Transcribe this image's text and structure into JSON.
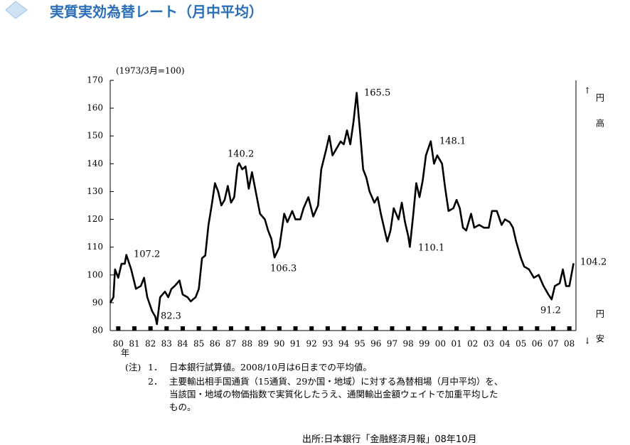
{
  "chart_data": {
    "type": "line",
    "title": "実質実効為替レート（月中平均）",
    "y_label": "(1973/3月=100)",
    "x_label": "年",
    "right_labels": [
      "↑",
      "円",
      "高",
      "円",
      "安",
      "↓"
    ],
    "xlim": [
      1980,
      2009
    ],
    "xticks": [
      {
        "value": 1980,
        "label": "80"
      },
      {
        "value": 1981,
        "label": "81"
      },
      {
        "value": 1982,
        "label": "82"
      },
      {
        "value": 1983,
        "label": "83"
      },
      {
        "value": 1984,
        "label": "84"
      },
      {
        "value": 1985,
        "label": "85"
      },
      {
        "value": 1986,
        "label": "86"
      },
      {
        "value": 1987,
        "label": "87"
      },
      {
        "value": 1988,
        "label": "88"
      },
      {
        "value": 1989,
        "label": "89"
      },
      {
        "value": 1990,
        "label": "90"
      },
      {
        "value": 1991,
        "label": "91"
      },
      {
        "value": 1992,
        "label": "92"
      },
      {
        "value": 1993,
        "label": "93"
      },
      {
        "value": 1994,
        "label": "94"
      },
      {
        "value": 1995,
        "label": "95"
      },
      {
        "value": 1996,
        "label": "96"
      },
      {
        "value": 1997,
        "label": "97"
      },
      {
        "value": 1998,
        "label": "98"
      },
      {
        "value": 1999,
        "label": "99"
      },
      {
        "value": 2000,
        "label": "00"
      },
      {
        "value": 2001,
        "label": "01"
      },
      {
        "value": 2002,
        "label": "02"
      },
      {
        "value": 2003,
        "label": "03"
      },
      {
        "value": 2004,
        "label": "04"
      },
      {
        "value": 2005,
        "label": "05"
      },
      {
        "value": 2006,
        "label": "06"
      },
      {
        "value": 2007,
        "label": "07"
      },
      {
        "value": 2008,
        "label": "08"
      }
    ],
    "ylim": [
      80,
      170
    ],
    "yticks": [
      80,
      90,
      100,
      110,
      120,
      130,
      140,
      150,
      160,
      170
    ],
    "series": [
      {
        "name": "実質実効為替レート",
        "color": "#000000",
        "x": [
          1980.0,
          1980.2,
          1980.3,
          1980.5,
          1980.7,
          1980.9,
          1981.0,
          1981.3,
          1981.6,
          1981.9,
          1982.1,
          1982.3,
          1982.6,
          1982.8,
          1982.9,
          1983.1,
          1983.4,
          1983.6,
          1983.8,
          1984.0,
          1984.3,
          1984.5,
          1984.8,
          1985.0,
          1985.3,
          1985.5,
          1985.7,
          1985.9,
          1986.1,
          1986.3,
          1986.5,
          1986.7,
          1986.9,
          1987.1,
          1987.3,
          1987.5,
          1987.7,
          1987.9,
          1988.0,
          1988.2,
          1988.4,
          1988.6,
          1988.8,
          1989.0,
          1989.3,
          1989.6,
          1989.8,
          1990.0,
          1990.2,
          1990.5,
          1990.8,
          1991.0,
          1991.3,
          1991.5,
          1991.8,
          1992.0,
          1992.3,
          1992.6,
          1992.9,
          1993.1,
          1993.4,
          1993.6,
          1993.8,
          1994.0,
          1994.3,
          1994.5,
          1994.7,
          1994.9,
          1995.1,
          1995.3,
          1995.5,
          1995.7,
          1995.9,
          1996.1,
          1996.4,
          1996.6,
          1996.8,
          1997.0,
          1997.2,
          1997.4,
          1997.6,
          1997.9,
          1998.1,
          1998.3,
          1998.5,
          1998.6,
          1998.8,
          1999.0,
          1999.2,
          1999.4,
          1999.6,
          1999.9,
          2000.1,
          2000.3,
          2000.6,
          2000.8,
          2001.0,
          2001.3,
          2001.5,
          2001.7,
          2001.9,
          2002.1,
          2002.4,
          2002.6,
          2002.9,
          2003.2,
          2003.5,
          2003.7,
          2004.0,
          2004.3,
          2004.5,
          2004.8,
          2005.0,
          2005.2,
          2005.5,
          2005.7,
          2006.0,
          2006.3,
          2006.6,
          2006.9,
          2007.2,
          2007.4,
          2007.6,
          2007.9,
          2008.1,
          2008.3,
          2008.5,
          2008.76
        ],
        "values": [
          90,
          92,
          102,
          99,
          104,
          104,
          107.2,
          102,
          95,
          96,
          99,
          92,
          87,
          85,
          82.3,
          92,
          94,
          92,
          95,
          96,
          98,
          93,
          92,
          90.5,
          92,
          95,
          106,
          107,
          118,
          125,
          133,
          130,
          125,
          127,
          132,
          126,
          128,
          139,
          140.2,
          138,
          139,
          131,
          137,
          131,
          122,
          120,
          116,
          113,
          106.3,
          110,
          122,
          119,
          123,
          120,
          120,
          124,
          128,
          121,
          125,
          138,
          145,
          150,
          143,
          145,
          148,
          147,
          152,
          147,
          155,
          165.5,
          152,
          138,
          135,
          130,
          126,
          128,
          122,
          117,
          112,
          116,
          124,
          120,
          126,
          119,
          114,
          110.1,
          121,
          133,
          128,
          134,
          143,
          148.1,
          140,
          143,
          140,
          131,
          123,
          124,
          127,
          124,
          117,
          116,
          122,
          117,
          118,
          117,
          117,
          123,
          123,
          118,
          120,
          119,
          117,
          112,
          106,
          103,
          102,
          99,
          100,
          96,
          93,
          91.2,
          96,
          97,
          102,
          96,
          96,
          104.2
        ]
      }
    ],
    "annotations": [
      "107.2",
      "82.3",
      "140.2",
      "106.3",
      "165.5",
      "110.1",
      "148.1",
      "91.2",
      "104.2"
    ],
    "notes": [
      "(注)",
      "1．",
      "日本銀行試算値。2008/10月は6日までの平均値。",
      "2．",
      "主要輸出相手国通貨（15通貨、29か国・地域）に対する為替相場（月中平均）を、",
      "当該国・地域の物価指数で実質化したうえ、通関輸出金額ウェイトで加重平均した",
      "もの。"
    ],
    "source": "出所:日本銀行「金融経済月報」08年10月"
  }
}
